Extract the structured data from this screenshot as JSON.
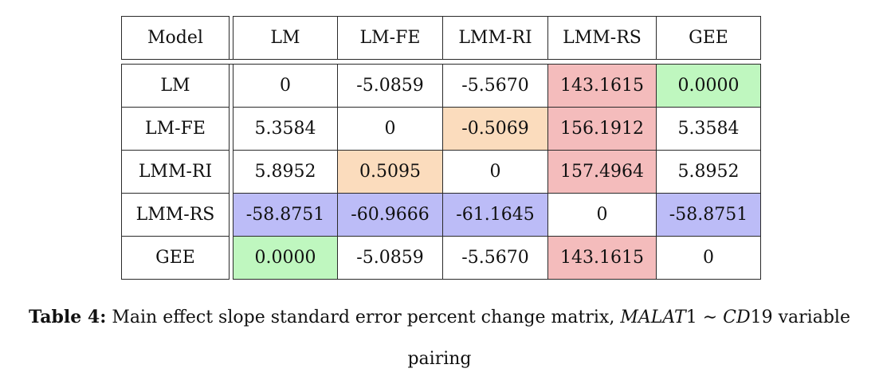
{
  "table": {
    "corner_label": "Model",
    "columns": [
      "LM",
      "LM-FE",
      "LMM-RI",
      "LMM-RS",
      "GEE"
    ],
    "rows": [
      {
        "label": "LM",
        "cells": [
          {
            "value": "0",
            "color": ""
          },
          {
            "value": "-5.0859",
            "color": ""
          },
          {
            "value": "-5.5670",
            "color": ""
          },
          {
            "value": "143.1615",
            "color": "#f4bcbc"
          },
          {
            "value": "0.0000",
            "color": "#bff7bf"
          }
        ]
      },
      {
        "label": "LM-FE",
        "cells": [
          {
            "value": "5.3584",
            "color": ""
          },
          {
            "value": "0",
            "color": ""
          },
          {
            "value": "-0.5069",
            "color": "#fbdcbd"
          },
          {
            "value": "156.1912",
            "color": "#f4bcbc"
          },
          {
            "value": "5.3584",
            "color": ""
          }
        ]
      },
      {
        "label": "LMM-RI",
        "cells": [
          {
            "value": "5.8952",
            "color": ""
          },
          {
            "value": "0.5095",
            "color": "#fbdcbd"
          },
          {
            "value": "0",
            "color": ""
          },
          {
            "value": "157.4964",
            "color": "#f4bcbc"
          },
          {
            "value": "5.8952",
            "color": ""
          }
        ]
      },
      {
        "label": "LMM-RS",
        "cells": [
          {
            "value": "-58.8751",
            "color": "#bcbcf7"
          },
          {
            "value": "-60.9666",
            "color": "#bcbcf7"
          },
          {
            "value": "-61.1645",
            "color": "#bcbcf7"
          },
          {
            "value": "0",
            "color": ""
          },
          {
            "value": "-58.8751",
            "color": "#bcbcf7"
          }
        ]
      },
      {
        "label": "GEE",
        "cells": [
          {
            "value": "0.0000",
            "color": "#bff7bf"
          },
          {
            "value": "-5.0859",
            "color": ""
          },
          {
            "value": "-5.5670",
            "color": ""
          },
          {
            "value": "143.1615",
            "color": "#f4bcbc"
          },
          {
            "value": "0",
            "color": ""
          }
        ]
      }
    ]
  },
  "caption": {
    "label": "Table 4:",
    "text_before": " Main effect slope standard error percent change matrix, ",
    "math_a": "MALAT",
    "num_a": "1",
    "tilde": " ∼ ",
    "math_b": "CD",
    "num_b": "19",
    "text_after": " variable",
    "line2": "pairing"
  }
}
